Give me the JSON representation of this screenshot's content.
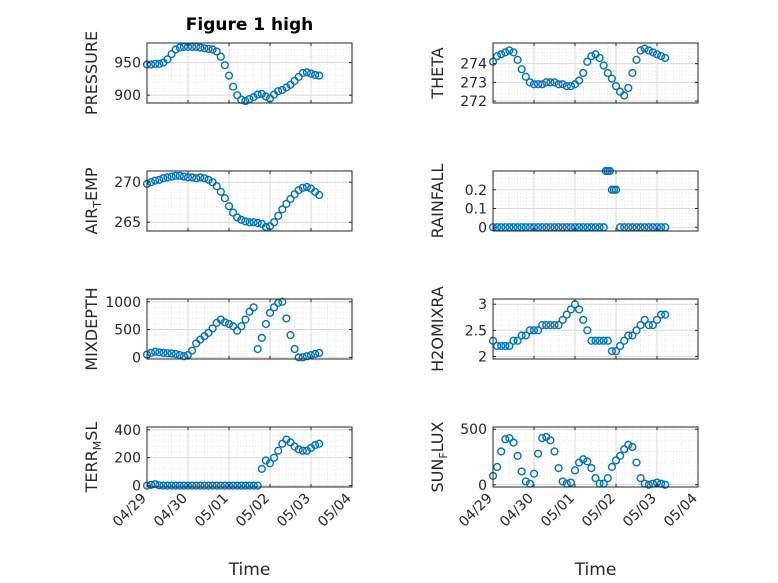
{
  "title": "Figure 1 high",
  "colors": {
    "marker": "#0072BD",
    "axis": "#262626",
    "grid": "#d9d9d9"
  },
  "chart_data": [
    {
      "type": "scatter",
      "id": "pressure",
      "title": "Figure 1 high",
      "ylabel": "PRESSURE",
      "xlabel": "",
      "xlim": [
        0,
        5
      ],
      "xticks": [
        0,
        1,
        2,
        3,
        4,
        5
      ],
      "xticklabels": [
        "04/29",
        "04/30",
        "05/01",
        "05/02",
        "05/03",
        "05/04"
      ],
      "ylim": [
        888,
        980
      ],
      "yticks": [
        900,
        950
      ],
      "yticklabels": [
        "900",
        "950"
      ],
      "grid": true,
      "x": [
        0.0,
        0.1,
        0.2,
        0.3,
        0.4,
        0.5,
        0.6,
        0.7,
        0.8,
        0.9,
        1.0,
        1.1,
        1.2,
        1.3,
        1.4,
        1.5,
        1.6,
        1.7,
        1.8,
        1.9,
        2.0,
        2.1,
        2.2,
        2.3,
        2.4,
        2.5,
        2.6,
        2.7,
        2.8,
        2.9,
        3.0,
        3.1,
        3.2,
        3.3,
        3.4,
        3.5,
        3.6,
        3.7,
        3.8,
        3.9,
        4.0,
        4.1,
        4.2
      ],
      "y": [
        947,
        947,
        948,
        948,
        950,
        955,
        963,
        970,
        973,
        974,
        974,
        974,
        974,
        973,
        972,
        971,
        970,
        967,
        959,
        946,
        930,
        913,
        900,
        893,
        891,
        894,
        897,
        901,
        902,
        898,
        895,
        901,
        906,
        908,
        912,
        916,
        922,
        928,
        934,
        935,
        933,
        931,
        930
      ]
    },
    {
      "type": "scatter",
      "id": "theta",
      "title": "",
      "ylabel": "THETA",
      "xlabel": "",
      "xlim": [
        0,
        5
      ],
      "xticks": [
        0,
        1,
        2,
        3,
        4,
        5
      ],
      "xticklabels": [
        "04/29",
        "04/30",
        "05/01",
        "05/02",
        "05/03",
        "05/04"
      ],
      "ylim": [
        271.9,
        275.1
      ],
      "yticks": [
        272,
        273,
        274
      ],
      "yticklabels": [
        "272",
        "273",
        "274"
      ],
      "grid": true,
      "x": [
        0.0,
        0.1,
        0.2,
        0.3,
        0.4,
        0.5,
        0.6,
        0.7,
        0.8,
        0.9,
        1.0,
        1.1,
        1.2,
        1.3,
        1.4,
        1.5,
        1.6,
        1.7,
        1.8,
        1.9,
        2.0,
        2.1,
        2.2,
        2.3,
        2.4,
        2.5,
        2.6,
        2.7,
        2.8,
        2.9,
        3.0,
        3.1,
        3.2,
        3.3,
        3.4,
        3.5,
        3.6,
        3.7,
        3.8,
        3.9,
        4.0,
        4.1,
        4.2
      ],
      "y": [
        274.1,
        274.4,
        274.5,
        274.6,
        274.7,
        274.6,
        274.2,
        273.7,
        273.3,
        273.0,
        272.9,
        272.9,
        272.9,
        273.0,
        273.0,
        273.0,
        272.9,
        272.9,
        272.8,
        272.8,
        272.9,
        273.1,
        273.5,
        274.1,
        274.4,
        274.5,
        274.3,
        273.9,
        273.5,
        273.2,
        272.8,
        272.5,
        272.3,
        272.7,
        273.5,
        274.2,
        274.7,
        274.8,
        274.7,
        274.6,
        274.5,
        274.4,
        274.3
      ]
    },
    {
      "type": "scatter",
      "id": "air_temp",
      "title": "",
      "ylabel": "AIR_TEMP",
      "xlabel": "",
      "xlim": [
        0,
        5
      ],
      "xticks": [
        0,
        1,
        2,
        3,
        4,
        5
      ],
      "xticklabels": [
        "04/29",
        "04/30",
        "05/01",
        "05/02",
        "05/03",
        "05/04"
      ],
      "ylim": [
        263.9,
        271.4
      ],
      "yticks": [
        265,
        270
      ],
      "yticklabels": [
        "265",
        "270"
      ],
      "grid": true,
      "x": [
        0.0,
        0.1,
        0.2,
        0.3,
        0.4,
        0.5,
        0.6,
        0.7,
        0.8,
        0.9,
        1.0,
        1.1,
        1.2,
        1.3,
        1.4,
        1.5,
        1.6,
        1.7,
        1.8,
        1.9,
        2.0,
        2.1,
        2.2,
        2.3,
        2.4,
        2.5,
        2.6,
        2.7,
        2.8,
        2.9,
        3.0,
        3.1,
        3.2,
        3.3,
        3.4,
        3.5,
        3.6,
        3.7,
        3.8,
        3.9,
        4.0,
        4.1,
        4.2
      ],
      "y": [
        269.8,
        270.0,
        270.2,
        270.3,
        270.5,
        270.6,
        270.7,
        270.8,
        270.8,
        270.7,
        270.6,
        270.6,
        270.5,
        270.6,
        270.5,
        270.3,
        270.0,
        269.5,
        268.8,
        268.0,
        267.0,
        266.2,
        265.6,
        265.3,
        265.1,
        265.0,
        265.0,
        264.9,
        264.8,
        264.4,
        264.5,
        265.0,
        265.8,
        266.6,
        267.3,
        267.9,
        268.5,
        269.0,
        269.3,
        269.4,
        269.2,
        268.8,
        268.4
      ]
    },
    {
      "type": "scatter",
      "id": "rainfall",
      "title": "",
      "ylabel": "RAINFALL",
      "xlabel": "",
      "xlim": [
        0,
        5
      ],
      "xticks": [
        0,
        1,
        2,
        3,
        4,
        5
      ],
      "xticklabels": [
        "04/29",
        "04/30",
        "05/01",
        "05/02",
        "05/03",
        "05/04"
      ],
      "ylim": [
        -0.02,
        0.3
      ],
      "yticks": [
        0,
        0.1,
        0.2
      ],
      "yticklabels": [
        "0",
        "0.1",
        "0.2"
      ],
      "grid": true,
      "x": [
        0.0,
        0.1,
        0.2,
        0.3,
        0.4,
        0.5,
        0.6,
        0.7,
        0.8,
        0.9,
        1.0,
        1.1,
        1.2,
        1.3,
        1.4,
        1.5,
        1.6,
        1.7,
        1.8,
        1.9,
        2.0,
        2.1,
        2.2,
        2.3,
        2.4,
        2.5,
        2.6,
        2.7,
        2.75,
        2.8,
        2.85,
        2.9,
        2.95,
        3.0,
        3.1,
        3.2,
        3.3,
        3.4,
        3.5,
        3.6,
        3.7,
        3.8,
        3.9,
        4.0,
        4.1,
        4.2
      ],
      "y": [
        0,
        0,
        0,
        0,
        0,
        0,
        0,
        0,
        0,
        0,
        0,
        0,
        0,
        0,
        0,
        0,
        0,
        0,
        0,
        0,
        0,
        0,
        0,
        0,
        0,
        0,
        0,
        0,
        0.3,
        0.3,
        0.3,
        0.2,
        0.2,
        0.2,
        0,
        0,
        0,
        0,
        0,
        0,
        0,
        0,
        0,
        0,
        0,
        0
      ]
    },
    {
      "type": "scatter",
      "id": "mixdepth",
      "title": "",
      "ylabel": "MIXDEPTH",
      "xlabel": "",
      "xlim": [
        0,
        5
      ],
      "xticks": [
        0,
        1,
        2,
        3,
        4,
        5
      ],
      "xticklabels": [
        "04/29",
        "04/30",
        "05/01",
        "05/02",
        "05/03",
        "05/04"
      ],
      "ylim": [
        -30,
        1050
      ],
      "yticks": [
        0,
        500,
        1000
      ],
      "yticklabels": [
        "0",
        "500",
        "1000"
      ],
      "grid": true,
      "x": [
        0.0,
        0.1,
        0.2,
        0.3,
        0.4,
        0.5,
        0.6,
        0.7,
        0.8,
        0.9,
        1.0,
        1.1,
        1.2,
        1.3,
        1.4,
        1.5,
        1.6,
        1.7,
        1.8,
        1.9,
        2.0,
        2.1,
        2.2,
        2.3,
        2.4,
        2.5,
        2.6,
        2.7,
        2.8,
        2.9,
        3.0,
        3.1,
        3.2,
        3.3,
        3.4,
        3.5,
        3.6,
        3.7,
        3.8,
        3.9,
        4.0,
        4.1,
        4.2
      ],
      "y": [
        50,
        80,
        100,
        90,
        80,
        75,
        70,
        60,
        40,
        20,
        40,
        120,
        250,
        320,
        380,
        440,
        520,
        620,
        680,
        630,
        600,
        560,
        480,
        560,
        680,
        820,
        900,
        150,
        350,
        600,
        800,
        900,
        980,
        1000,
        700,
        400,
        150,
        0,
        0,
        20,
        40,
        60,
        80
      ]
    },
    {
      "type": "scatter",
      "id": "h2omixra",
      "title": "",
      "ylabel": "H2OMIXRA",
      "xlabel": "",
      "xlim": [
        0,
        5
      ],
      "xticks": [
        0,
        1,
        2,
        3,
        4,
        5
      ],
      "xticklabels": [
        "04/29",
        "04/30",
        "05/01",
        "05/02",
        "05/03",
        "05/04"
      ],
      "ylim": [
        1.95,
        3.1
      ],
      "yticks": [
        2,
        2.5,
        3
      ],
      "yticklabels": [
        "2",
        "2.5",
        "3"
      ],
      "grid": true,
      "x": [
        0.0,
        0.1,
        0.2,
        0.3,
        0.4,
        0.5,
        0.6,
        0.7,
        0.8,
        0.9,
        1.0,
        1.1,
        1.2,
        1.3,
        1.4,
        1.5,
        1.6,
        1.7,
        1.8,
        1.9,
        2.0,
        2.1,
        2.2,
        2.3,
        2.4,
        2.5,
        2.6,
        2.7,
        2.8,
        2.9,
        3.0,
        3.1,
        3.2,
        3.3,
        3.4,
        3.5,
        3.6,
        3.7,
        3.8,
        3.9,
        4.0,
        4.1,
        4.2
      ],
      "y": [
        2.3,
        2.2,
        2.2,
        2.2,
        2.2,
        2.3,
        2.3,
        2.4,
        2.4,
        2.5,
        2.5,
        2.5,
        2.6,
        2.6,
        2.6,
        2.6,
        2.6,
        2.7,
        2.8,
        2.9,
        3.0,
        2.9,
        2.7,
        2.5,
        2.3,
        2.3,
        2.3,
        2.3,
        2.3,
        2.1,
        2.1,
        2.2,
        2.3,
        2.4,
        2.4,
        2.5,
        2.6,
        2.7,
        2.6,
        2.6,
        2.7,
        2.8,
        2.8
      ]
    },
    {
      "type": "scatter",
      "id": "terr_msl",
      "title": "",
      "ylabel": "TERR_MSL",
      "xlabel": "Time",
      "xlim": [
        0,
        5
      ],
      "xticks": [
        0,
        1,
        2,
        3,
        4,
        5
      ],
      "xticklabels": [
        "04/29",
        "04/30",
        "05/01",
        "05/02",
        "05/03",
        "05/04"
      ],
      "ylim": [
        -10,
        420
      ],
      "yticks": [
        0,
        200,
        400
      ],
      "yticklabels": [
        "0",
        "200",
        "400"
      ],
      "grid": true,
      "x": [
        0.0,
        0.1,
        0.2,
        0.3,
        0.4,
        0.5,
        0.6,
        0.7,
        0.8,
        0.9,
        1.0,
        1.1,
        1.2,
        1.3,
        1.4,
        1.5,
        1.6,
        1.7,
        1.8,
        1.9,
        2.0,
        2.1,
        2.2,
        2.3,
        2.4,
        2.5,
        2.6,
        2.7,
        2.8,
        2.9,
        3.0,
        3.1,
        3.2,
        3.3,
        3.4,
        3.5,
        3.6,
        3.7,
        3.8,
        3.9,
        4.0,
        4.1,
        4.2
      ],
      "y": [
        0,
        5,
        10,
        2,
        0,
        0,
        0,
        0,
        0,
        0,
        0,
        0,
        0,
        0,
        0,
        0,
        0,
        0,
        0,
        0,
        0,
        0,
        0,
        0,
        0,
        0,
        0,
        0,
        120,
        180,
        160,
        200,
        250,
        300,
        330,
        310,
        280,
        260,
        250,
        250,
        270,
        290,
        300
      ]
    },
    {
      "type": "scatter",
      "id": "sun_flux",
      "title": "",
      "ylabel": "SUN_FLUX",
      "xlabel": "Time",
      "xlim": [
        0,
        5
      ],
      "xticks": [
        0,
        1,
        2,
        3,
        4,
        5
      ],
      "xticklabels": [
        "04/29",
        "04/30",
        "05/01",
        "05/02",
        "05/03",
        "05/04"
      ],
      "ylim": [
        -20,
        520
      ],
      "yticks": [
        0,
        500
      ],
      "yticklabels": [
        "0",
        "500"
      ],
      "grid": true,
      "x": [
        0.0,
        0.1,
        0.2,
        0.3,
        0.4,
        0.5,
        0.6,
        0.7,
        0.8,
        0.9,
        1.0,
        1.1,
        1.2,
        1.3,
        1.4,
        1.5,
        1.6,
        1.7,
        1.8,
        1.9,
        2.0,
        2.1,
        2.2,
        2.3,
        2.4,
        2.5,
        2.6,
        2.7,
        2.8,
        2.9,
        3.0,
        3.1,
        3.2,
        3.3,
        3.4,
        3.5,
        3.6,
        3.7,
        3.8,
        3.9,
        4.0,
        4.1,
        4.2
      ],
      "y": [
        80,
        160,
        300,
        410,
        420,
        380,
        260,
        120,
        30,
        10,
        100,
        280,
        420,
        430,
        400,
        300,
        150,
        30,
        10,
        20,
        130,
        200,
        230,
        210,
        150,
        60,
        10,
        10,
        60,
        160,
        220,
        260,
        320,
        360,
        340,
        200,
        60,
        10,
        0,
        10,
        20,
        10,
        0
      ]
    }
  ]
}
